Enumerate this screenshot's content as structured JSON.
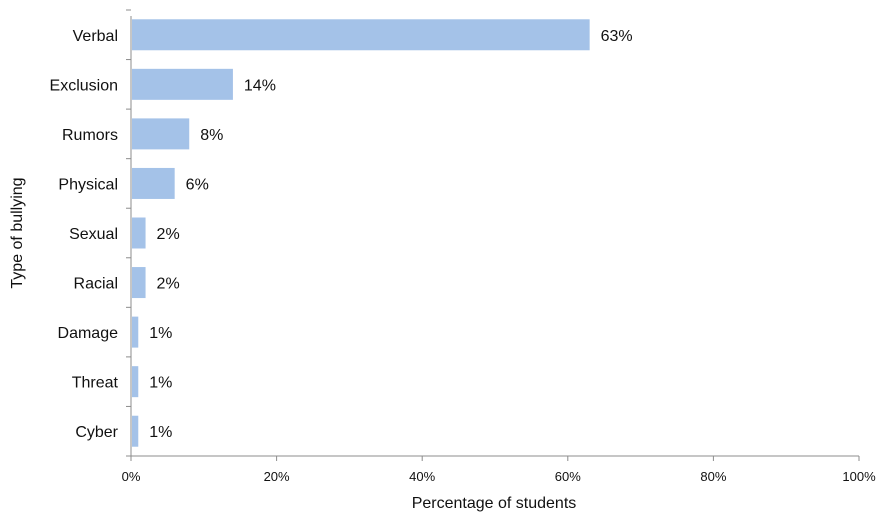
{
  "chart_data": {
    "type": "bar",
    "orientation": "horizontal",
    "categories": [
      "Verbal",
      "Exclusion",
      "Rumors",
      "Physical",
      "Sexual",
      "Racial",
      "Damage",
      "Threat",
      "Cyber"
    ],
    "values": [
      63,
      14,
      8,
      6,
      2,
      2,
      1,
      1,
      1
    ],
    "value_labels": [
      "63%",
      "14%",
      "8%",
      "6%",
      "2%",
      "2%",
      "1%",
      "1%",
      "1%"
    ],
    "xlim": [
      0,
      100
    ],
    "x_ticks": [
      0,
      20,
      40,
      60,
      80,
      100
    ],
    "x_tick_labels": [
      "0%",
      "20%",
      "40%",
      "60%",
      "80%",
      "100%"
    ],
    "xlabel": "Percentage of students",
    "ylabel": "Type of bullying",
    "title": "",
    "grid": false,
    "legend": "none",
    "bar_color": "#a4c2e8"
  }
}
